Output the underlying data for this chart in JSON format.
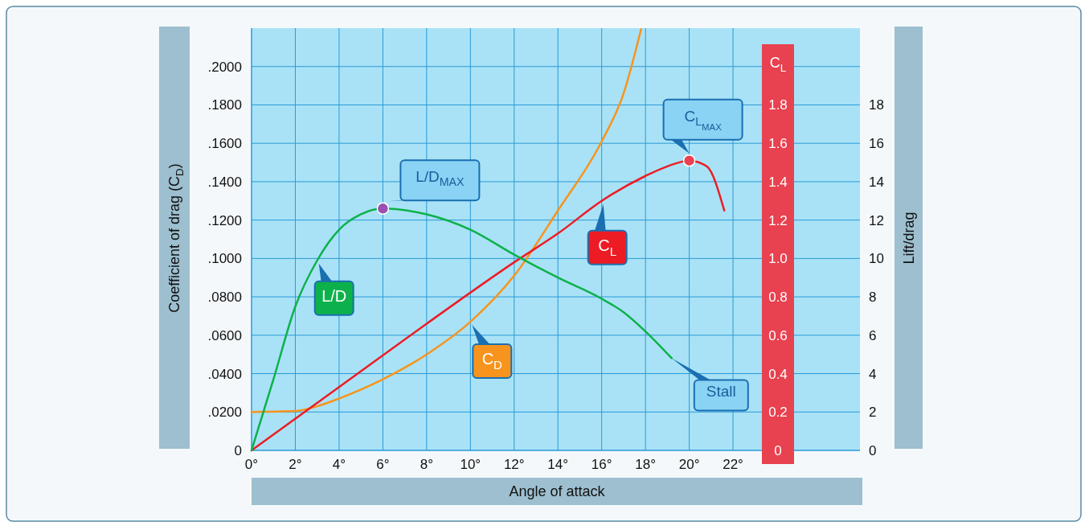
{
  "chart_data": {
    "type": "line",
    "xlabel": "Angle of attack",
    "ylabel": "Coefficient of drag (C$_{D}$)",
    "y2label": "Lift/drag",
    "y3label": "C$_{L}$",
    "xlim": [
      0,
      27.8
    ],
    "xticks": [
      {
        "value": 0,
        "label": "0°"
      },
      {
        "value": 2,
        "label": "2°"
      },
      {
        "value": 4,
        "label": "4°"
      },
      {
        "value": 6,
        "label": "6°"
      },
      {
        "value": 8,
        "label": "8°"
      },
      {
        "value": 10,
        "label": "10°"
      },
      {
        "value": 12,
        "label": "12°"
      },
      {
        "value": 14,
        "label": "14°"
      },
      {
        "value": 16,
        "label": "16°"
      },
      {
        "value": 18,
        "label": "18°"
      },
      {
        "value": 20,
        "label": "20°"
      },
      {
        "value": 22,
        "label": "22°"
      }
    ],
    "ylim": [
      0,
      0.22
    ],
    "yticks": [
      0,
      {
        "value": 0.02,
        "label": ".0200"
      },
      {
        "value": 0.04,
        "label": ".0400"
      },
      {
        "value": 0.06,
        "label": ".0600"
      },
      {
        "value": 0.08,
        "label": ".0800"
      },
      {
        "value": 0.1,
        "label": ".1000"
      },
      {
        "value": 0.12,
        "label": ".1200"
      },
      {
        "value": 0.14,
        "label": ".1400"
      },
      {
        "value": 0.16,
        "label": ".1600"
      },
      {
        "value": 0.18,
        "label": ".1800"
      },
      {
        "value": 0.2,
        "label": ".2000"
      }
    ],
    "y2lim": [
      0,
      22
    ],
    "y2ticks": [
      0,
      2,
      4,
      6,
      8,
      10,
      12,
      14,
      16,
      18
    ],
    "y3lim": [
      0,
      2.2
    ],
    "y3ticks": [
      0,
      0.2,
      0.4,
      0.6,
      0.8,
      {
        "value": 1,
        "label": "1.0"
      },
      1.2,
      1.4,
      1.6,
      1.8
    ],
    "grid": true,
    "series": [
      {
        "name": "C$_{D}$",
        "color": "#f7941d",
        "axis": "y",
        "x": [
          0,
          2,
          3,
          4,
          6,
          8,
          10,
          12,
          14,
          16,
          17,
          17.8
        ],
        "values": [
          0.02,
          0.0205,
          0.023,
          0.027,
          0.037,
          0.05,
          0.067,
          0.091,
          0.125,
          0.161,
          0.186,
          0.2195
        ]
      },
      {
        "name": "C$_{L}$",
        "color": "#ed1c24",
        "axis": "y3",
        "x": [
          0,
          4,
          8,
          12,
          14,
          16,
          18,
          19,
          20,
          20.8,
          21.6
        ],
        "values": [
          0,
          0.33,
          0.66,
          0.98,
          1.13,
          1.3,
          1.43,
          1.48,
          1.51,
          1.48,
          1.25
        ]
      },
      {
        "name": "L/D",
        "color": "#0db14b",
        "axis": "y2",
        "x": [
          0,
          1,
          2,
          3,
          4,
          5,
          6,
          8,
          10,
          12,
          14,
          16,
          17,
          18,
          19.2
        ],
        "values": [
          0,
          3.7,
          7.5,
          9.9,
          11.5,
          12.3,
          12.6,
          12.3,
          11.5,
          10.2,
          9,
          7.9,
          7.2,
          6.2,
          4.8
        ]
      }
    ],
    "annotations": [
      "L/D$_{MAX}$",
      "C$_{L}$$_{MAX}$",
      "Stall"
    ]
  }
}
